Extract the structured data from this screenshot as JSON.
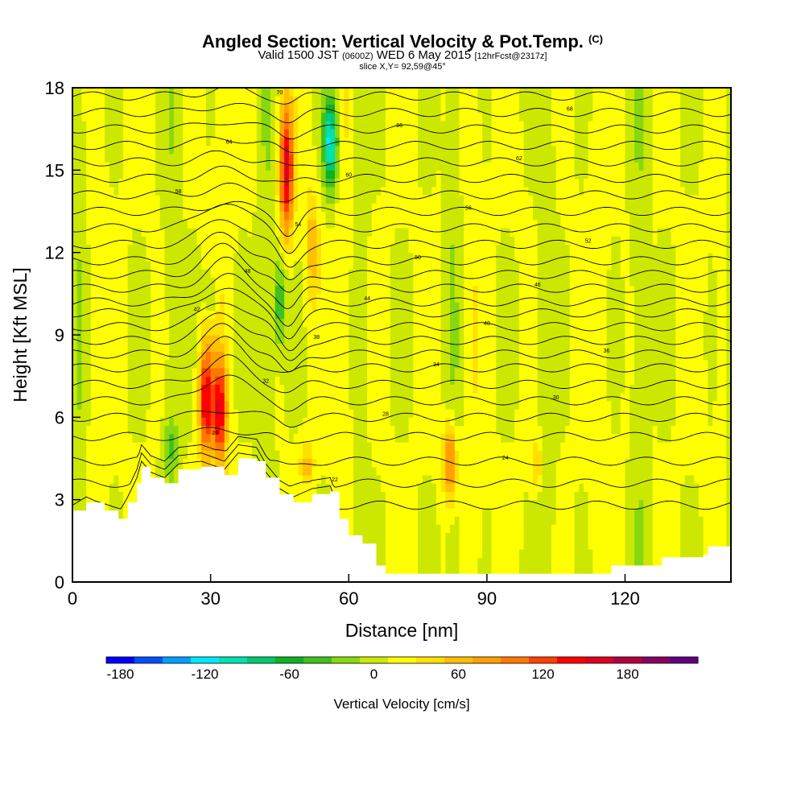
{
  "header": {
    "title": "Angled Section: Vertical Velocity & Pot.Temp.",
    "title_unit": "(C)",
    "valid_prefix": "Valid 1500 JST",
    "valid_utc": "(0600Z)",
    "valid_date": "WED 6 May 2015",
    "forecast_note": "[12hrFcst@2317z]",
    "slice_note": "slice X,Y= 92,59@45°"
  },
  "chart_data": {
    "type": "heatmap",
    "xlabel": "Distance [nm]",
    "ylabel": "Height [Kft MSL]",
    "xlim": [
      0,
      143
    ],
    "ylim": [
      0,
      18
    ],
    "x_ticks": [
      0,
      30,
      60,
      90,
      120
    ],
    "y_ticks": [
      0,
      3,
      6,
      9,
      12,
      15,
      18
    ],
    "colorbar": {
      "label": "Vertical Velocity [cm/s]",
      "range": [
        -190,
        230
      ],
      "step": 20,
      "tick_labels": [
        -180,
        -120,
        -60,
        0,
        60,
        120,
        180
      ],
      "colors": [
        "#0000ff",
        "#0050ff",
        "#00a0ff",
        "#00e8ff",
        "#00e0b0",
        "#00c870",
        "#10b020",
        "#40c020",
        "#88d810",
        "#cce800",
        "#ffff00",
        "#ffe000",
        "#ffc000",
        "#ffa000",
        "#ff7800",
        "#ff4000",
        "#ff0000",
        "#dd0020",
        "#b00040",
        "#880060",
        "#600080"
      ]
    },
    "updraft_cores": [
      {
        "x": 29,
        "y_bottom": 4.0,
        "y_top": 9.3,
        "peak": 140
      },
      {
        "x": 32,
        "y_bottom": 4.0,
        "y_top": 8.6,
        "peak": 130
      },
      {
        "x": 46.5,
        "y_bottom": 12.0,
        "y_top": 18.0,
        "peak": 150
      },
      {
        "x": 52,
        "y_bottom": 9.5,
        "y_top": 15.0,
        "peak": 50
      },
      {
        "x": 51,
        "y_bottom": 3.3,
        "y_top": 5.3,
        "peak": 50
      },
      {
        "x": 82,
        "y_bottom": 2.5,
        "y_top": 6.3,
        "peak": 100
      },
      {
        "x": 101,
        "y_bottom": 3.0,
        "y_top": 5.6,
        "peak": 40
      }
    ],
    "downdraft_cores": [
      {
        "x": 56,
        "y_bottom": 14.0,
        "y_top": 18.0,
        "peak": -130
      },
      {
        "x": 45,
        "y_bottom": 8.0,
        "y_top": 12.5,
        "peak": -55
      },
      {
        "x": 21,
        "y_bottom": 3.8,
        "y_top": 6.0,
        "peak": -35
      },
      {
        "x": 30,
        "y_bottom": 9.5,
        "y_top": 11.5,
        "peak": -35
      }
    ],
    "terrain_heights_kft": [
      [
        0,
        2.6
      ],
      [
        3,
        2.9
      ],
      [
        7,
        2.6
      ],
      [
        10,
        2.3
      ],
      [
        12,
        2.9
      ],
      [
        14,
        3.6
      ],
      [
        15,
        4.2
      ],
      [
        17,
        3.8
      ],
      [
        20,
        3.6
      ],
      [
        23,
        4.1
      ],
      [
        28,
        4.2
      ],
      [
        33,
        3.9
      ],
      [
        36,
        4.5
      ],
      [
        40,
        4.4
      ],
      [
        42,
        3.8
      ],
      [
        45,
        3.2
      ],
      [
        48,
        2.9
      ],
      [
        52,
        3.2
      ],
      [
        56,
        3.3
      ],
      [
        58,
        2.3
      ],
      [
        60,
        1.7
      ],
      [
        63,
        1.4
      ],
      [
        66,
        0.6
      ],
      [
        68,
        0.3
      ],
      [
        113,
        0.3
      ],
      [
        117,
        0.6
      ],
      [
        128,
        0.9
      ],
      [
        137,
        1.0
      ],
      [
        138,
        1.3
      ],
      [
        143,
        1.3
      ]
    ],
    "isentrope_labels": [
      "20",
      "22",
      "24",
      "26",
      "28",
      "30",
      "32",
      "34",
      "36",
      "38",
      "40",
      "42",
      "44",
      "46",
      "48",
      "50",
      "52",
      "54",
      "56",
      "58",
      "60",
      "62",
      "64",
      "66",
      "68",
      "70"
    ],
    "line_color": "#000000"
  }
}
